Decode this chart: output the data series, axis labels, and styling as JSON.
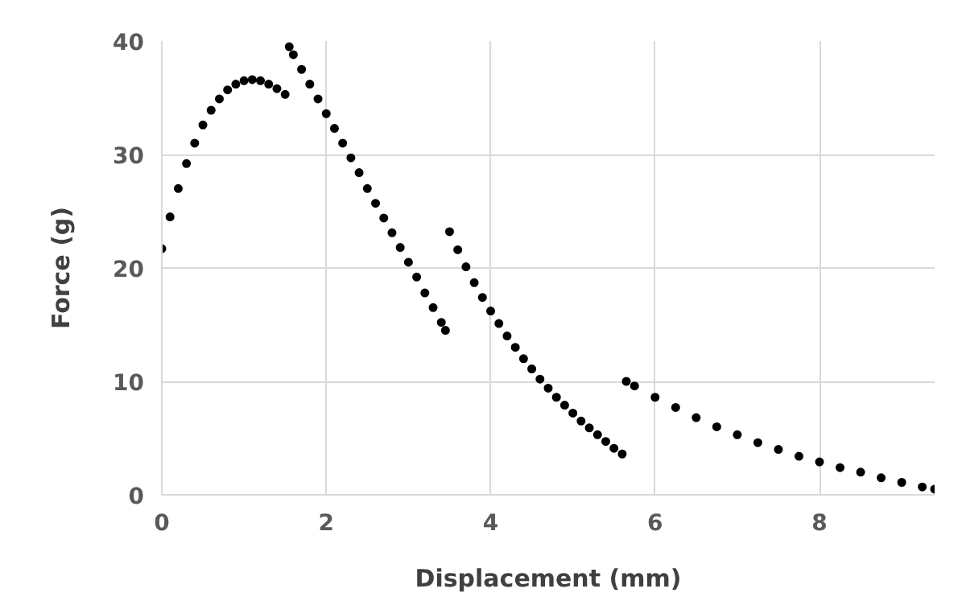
{
  "chart_data": {
    "type": "scatter",
    "xlabel": "Displacement (mm)",
    "ylabel": "Force (g)",
    "xlim": [
      0,
      9.4
    ],
    "ylim": [
      0,
      40
    ],
    "xticks": [
      0,
      2,
      4,
      6,
      8
    ],
    "yticks": [
      0,
      10,
      20,
      30,
      40
    ],
    "grid": true,
    "marker": "circle",
    "series": [
      {
        "color": "#000000",
        "x": [
          0,
          0.1,
          0.2,
          0.3,
          0.4,
          0.5,
          0.6,
          0.7,
          0.8,
          0.9,
          1.0,
          1.1,
          1.2,
          1.3,
          1.4,
          1.5,
          1.55,
          1.6,
          1.7,
          1.8,
          1.9,
          2.0,
          2.1,
          2.2,
          2.3,
          2.4,
          2.5,
          2.6,
          2.7,
          2.8,
          2.9,
          3.0,
          3.1,
          3.2,
          3.3,
          3.4,
          3.45,
          3.5,
          3.6,
          3.7,
          3.8,
          3.9,
          4.0,
          4.1,
          4.2,
          4.3,
          4.4,
          4.5,
          4.6,
          4.7,
          4.8,
          4.9,
          5.0,
          5.1,
          5.2,
          5.3,
          5.4,
          5.5,
          5.6,
          5.65,
          5.75,
          6.0,
          6.25,
          6.5,
          6.75,
          7.0,
          7.25,
          7.5,
          7.75,
          8.0,
          8.25,
          8.5,
          8.75,
          9.0,
          9.25,
          9.4
        ],
        "values": [
          21.7,
          24.5,
          27.0,
          29.2,
          31.0,
          32.6,
          33.9,
          34.9,
          35.7,
          36.2,
          36.5,
          36.6,
          36.5,
          36.2,
          35.8,
          35.3,
          39.5,
          38.8,
          37.5,
          36.2,
          34.9,
          33.6,
          32.3,
          31.0,
          29.7,
          28.4,
          27.0,
          25.7,
          24.4,
          23.1,
          21.8,
          20.5,
          19.2,
          17.8,
          16.5,
          15.2,
          14.5,
          23.2,
          21.6,
          20.1,
          18.7,
          17.4,
          16.2,
          15.1,
          14.0,
          13.0,
          12.0,
          11.1,
          10.2,
          9.4,
          8.6,
          7.9,
          7.2,
          6.5,
          5.9,
          5.3,
          4.7,
          4.1,
          3.6,
          10.0,
          9.6,
          8.6,
          7.7,
          6.8,
          6.0,
          5.3,
          4.6,
          4.0,
          3.4,
          2.9,
          2.4,
          2.0,
          1.5,
          1.1,
          0.7,
          0.5
        ]
      }
    ]
  }
}
